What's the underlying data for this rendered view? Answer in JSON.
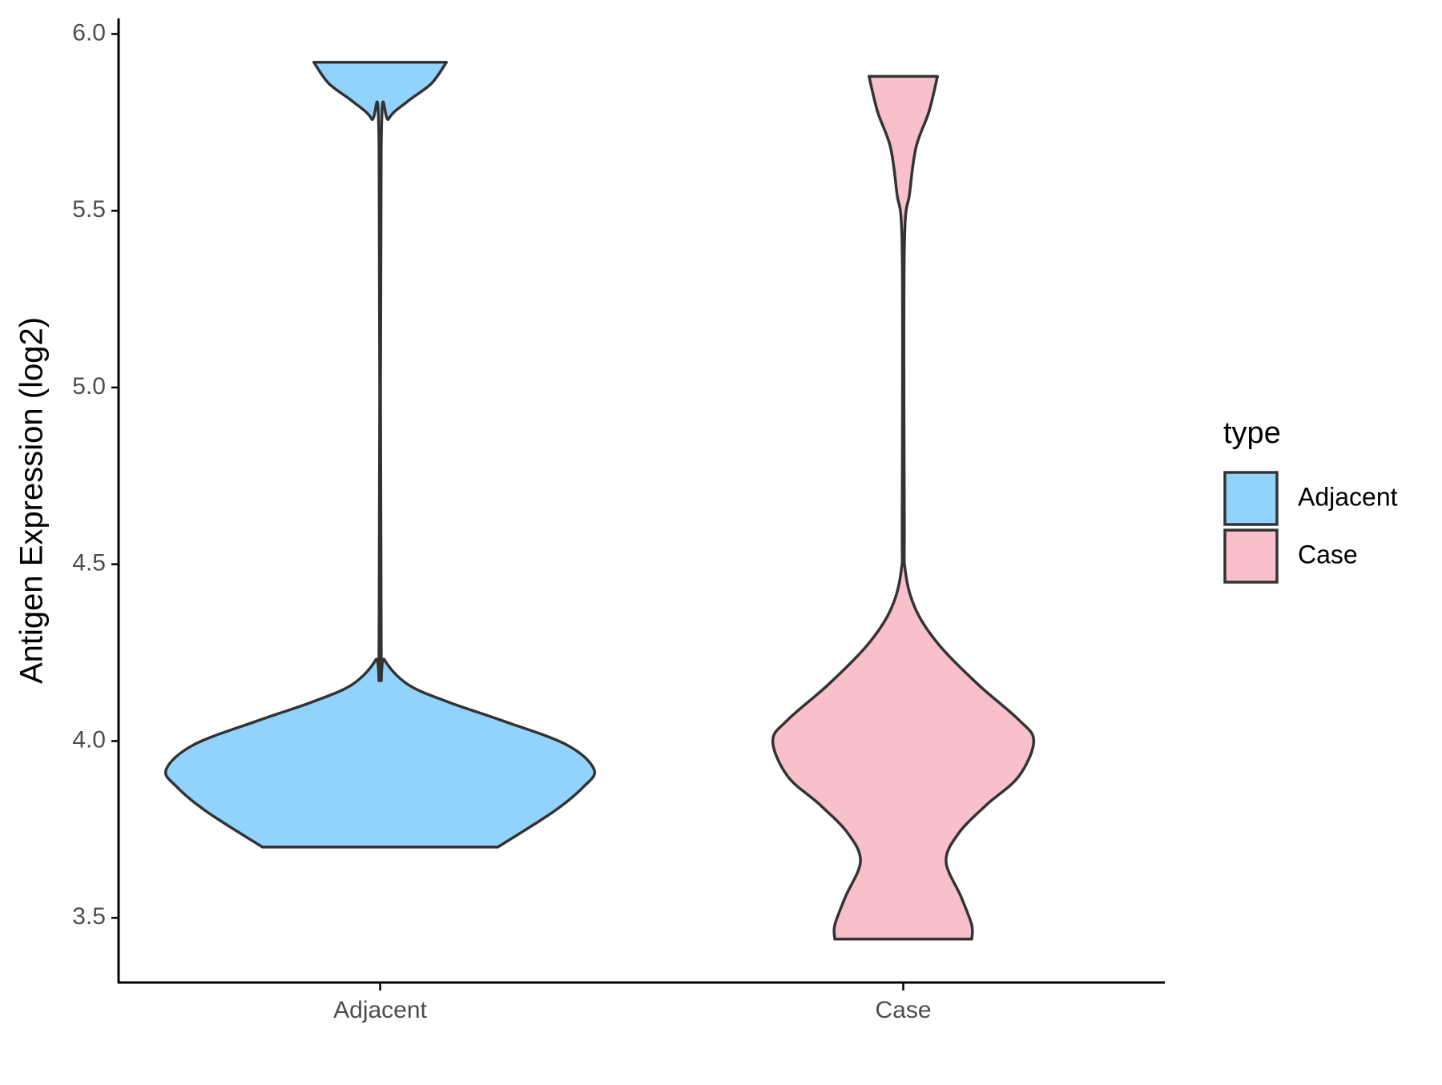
{
  "chart_data": {
    "type": "violin",
    "y_label": "Antigen Expression (log2)",
    "categories": [
      "Adjacent",
      "Case"
    ],
    "legend_title": "type",
    "legend": "right",
    "ylim": [
      3.317,
      6.044
    ],
    "yticks": [
      3.5,
      {
        "value": 4.0,
        "label": "4.0"
      },
      4.5,
      {
        "value": 5.0,
        "label": "5.0"
      },
      5.5,
      {
        "value": 6.0,
        "label": "6.0"
      }
    ],
    "grid": false,
    "series": [
      {
        "name": "Adjacent",
        "color": "#92d3fe",
        "y": [
          3.7,
          3.8,
          3.87,
          3.92,
          3.99,
          4.06,
          4.11,
          4.16,
          4.23,
          4.29,
          5.68,
          5.76,
          5.81,
          5.86,
          5.92
        ],
        "density": [
          0.55,
          0.81,
          0.95,
          1.0,
          0.87,
          0.56,
          0.32,
          0.13,
          0.02,
          0.005,
          0.005,
          0.04,
          0.13,
          0.24,
          0.31
        ]
      },
      {
        "name": "Case",
        "color": "#f7c0cb",
        "y": [
          3.44,
          3.48,
          3.56,
          3.66,
          3.74,
          3.82,
          3.9,
          4.0,
          4.06,
          4.16,
          4.27,
          4.37,
          4.48,
          4.63,
          5.39,
          5.55,
          5.68,
          5.78,
          5.88
        ],
        "density": [
          0.32,
          0.32,
          0.27,
          0.2,
          0.26,
          0.39,
          0.54,
          0.61,
          0.54,
          0.35,
          0.17,
          0.06,
          0.01,
          0.005,
          0.005,
          0.03,
          0.06,
          0.12,
          0.16
        ]
      }
    ]
  }
}
